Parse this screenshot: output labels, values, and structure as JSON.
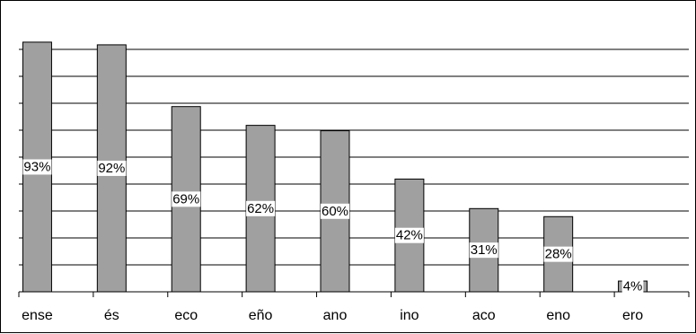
{
  "chart_data": {
    "type": "bar",
    "categories": [
      "ense",
      "és",
      "eco",
      "eño",
      "ano",
      "ino",
      "aco",
      "eno",
      "ero"
    ],
    "values": [
      93,
      92,
      69,
      62,
      60,
      42,
      31,
      28,
      4
    ],
    "data_labels": [
      "93%",
      "92%",
      "69%",
      "62%",
      "60%",
      "42%",
      "31%",
      "28%",
      "4%"
    ],
    "ylim": [
      0,
      100
    ],
    "grid": true,
    "legend": "none",
    "bar_color": "#a0a0a0",
    "line_color": "#000000"
  }
}
